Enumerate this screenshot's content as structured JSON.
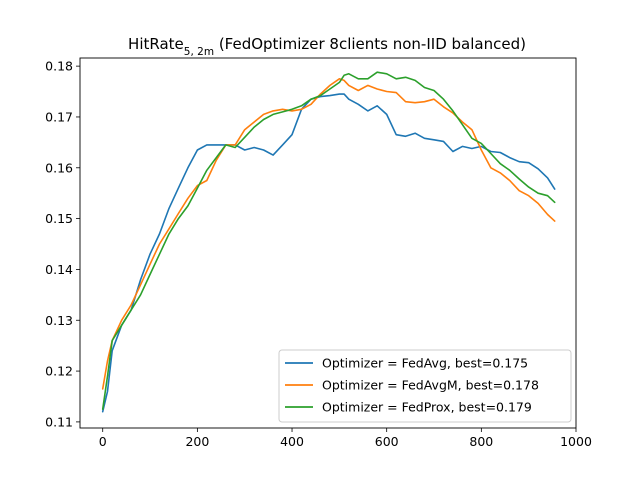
{
  "chart_data": {
    "type": "line",
    "title": {
      "main": "HitRate",
      "subscript": "5, 2m",
      "suffix": " (FedOptimizer 8clients non-IID balanced)"
    },
    "xlabel": "",
    "ylabel": "",
    "xlim": [
      -48,
      1000
    ],
    "ylim": [
      0.1088,
      0.1816
    ],
    "xticks": [
      0,
      200,
      400,
      600,
      800,
      1000
    ],
    "xtick_labels": [
      "0",
      "200",
      "400",
      "600",
      "800",
      "1000"
    ],
    "yticks": [
      0.11,
      0.12,
      0.13,
      0.14,
      0.15,
      0.16,
      0.17,
      0.18
    ],
    "ytick_labels": [
      "0.11",
      "0.12",
      "0.13",
      "0.14",
      "0.15",
      "0.16",
      "0.17",
      "0.18"
    ],
    "grid": false,
    "legend_position": "lower-right",
    "series": [
      {
        "name": "Optimizer = FedAvg, best=0.175",
        "color": "#1f77b4",
        "x": [
          0,
          10,
          20,
          40,
          60,
          80,
          100,
          120,
          140,
          160,
          180,
          200,
          220,
          240,
          260,
          280,
          300,
          320,
          340,
          360,
          380,
          400,
          420,
          440,
          460,
          480,
          500,
          510,
          520,
          540,
          560,
          580,
          600,
          620,
          640,
          660,
          680,
          700,
          720,
          740,
          760,
          780,
          800,
          820,
          840,
          860,
          880,
          900,
          920,
          940,
          955
        ],
        "y": [
          0.112,
          0.116,
          0.124,
          0.129,
          0.132,
          0.138,
          0.143,
          0.147,
          0.152,
          0.156,
          0.16,
          0.1635,
          0.1645,
          0.1645,
          0.1645,
          0.1645,
          0.1635,
          0.164,
          0.1635,
          0.1625,
          0.1645,
          0.1665,
          0.1715,
          0.1735,
          0.174,
          0.1742,
          0.1745,
          0.1745,
          0.1735,
          0.1725,
          0.1712,
          0.1722,
          0.1705,
          0.1665,
          0.1662,
          0.1668,
          0.1658,
          0.1655,
          0.1652,
          0.1632,
          0.1642,
          0.1638,
          0.1642,
          0.1632,
          0.163,
          0.162,
          0.1612,
          0.161,
          0.1598,
          0.158,
          0.1558
        ]
      },
      {
        "name": "Optimizer = FedAvgM, best=0.178",
        "color": "#ff7f0e",
        "x": [
          0,
          10,
          20,
          40,
          60,
          80,
          100,
          120,
          140,
          160,
          180,
          200,
          220,
          240,
          260,
          280,
          300,
          320,
          340,
          360,
          380,
          400,
          420,
          440,
          460,
          480,
          500,
          510,
          520,
          540,
          560,
          580,
          600,
          620,
          640,
          660,
          680,
          700,
          720,
          740,
          760,
          780,
          800,
          820,
          840,
          860,
          880,
          900,
          920,
          940,
          955
        ],
        "y": [
          0.1165,
          0.122,
          0.126,
          0.13,
          0.133,
          0.137,
          0.141,
          0.145,
          0.148,
          0.151,
          0.154,
          0.1565,
          0.1575,
          0.1615,
          0.1645,
          0.1645,
          0.1675,
          0.169,
          0.1705,
          0.1712,
          0.1715,
          0.1712,
          0.1715,
          0.1725,
          0.1745,
          0.1762,
          0.1775,
          0.1772,
          0.1762,
          0.1752,
          0.1762,
          0.1755,
          0.175,
          0.1748,
          0.173,
          0.1728,
          0.173,
          0.1735,
          0.172,
          0.1708,
          0.169,
          0.1675,
          0.1635,
          0.16,
          0.159,
          0.1575,
          0.1555,
          0.1545,
          0.153,
          0.1508,
          0.1495
        ]
      },
      {
        "name": "Optimizer = FedProx, best=0.179",
        "color": "#2ca02c",
        "x": [
          0,
          10,
          20,
          40,
          60,
          80,
          100,
          120,
          140,
          160,
          180,
          200,
          220,
          240,
          260,
          280,
          300,
          320,
          340,
          360,
          380,
          400,
          420,
          440,
          460,
          480,
          500,
          510,
          520,
          540,
          560,
          580,
          600,
          620,
          640,
          660,
          680,
          700,
          720,
          740,
          760,
          780,
          800,
          820,
          840,
          860,
          880,
          900,
          920,
          940,
          955
        ],
        "y": [
          0.1125,
          0.119,
          0.126,
          0.129,
          0.132,
          0.135,
          0.139,
          0.143,
          0.147,
          0.15,
          0.1525,
          0.156,
          0.1595,
          0.162,
          0.1645,
          0.164,
          0.166,
          0.168,
          0.1695,
          0.1705,
          0.171,
          0.1715,
          0.1722,
          0.1735,
          0.1742,
          0.1755,
          0.1768,
          0.1782,
          0.1785,
          0.1775,
          0.1775,
          0.1788,
          0.1785,
          0.1775,
          0.1778,
          0.1772,
          0.1758,
          0.1752,
          0.1735,
          0.1712,
          0.1685,
          0.1658,
          0.1648,
          0.1628,
          0.1608,
          0.1595,
          0.1578,
          0.1562,
          0.155,
          0.1545,
          0.1532
        ]
      }
    ]
  }
}
